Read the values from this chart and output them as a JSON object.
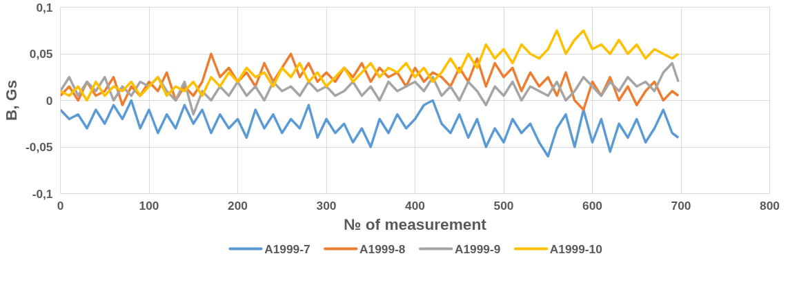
{
  "chart_data": {
    "type": "line",
    "xlabel": "№ of measurement",
    "ylabel": "B, Gs",
    "xlim": [
      0,
      800
    ],
    "xticks": [
      0,
      100,
      200,
      300,
      400,
      500,
      600,
      700,
      800
    ],
    "ylim": [
      -0.1,
      0.1
    ],
    "yticks": [
      {
        "value": -0.1,
        "label": "-0,1"
      },
      {
        "value": -0.05,
        "label": "-0,05"
      },
      0,
      {
        "value": 0.05,
        "label": "0,05"
      },
      {
        "value": 0.1,
        "label": "0,1"
      }
    ],
    "grid": true,
    "legend": "bottom",
    "marker": "none",
    "line_style": "solid",
    "x": [
      0,
      10,
      20,
      30,
      40,
      50,
      60,
      70,
      80,
      90,
      100,
      110,
      120,
      130,
      140,
      150,
      160,
      170,
      180,
      190,
      200,
      210,
      220,
      230,
      240,
      250,
      260,
      270,
      280,
      290,
      300,
      310,
      320,
      330,
      340,
      350,
      360,
      370,
      380,
      390,
      400,
      410,
      420,
      430,
      440,
      450,
      460,
      470,
      480,
      490,
      500,
      510,
      520,
      530,
      540,
      550,
      560,
      570,
      580,
      590,
      600,
      610,
      620,
      630,
      640,
      650,
      660,
      670,
      680,
      690,
      697
    ],
    "series": [
      {
        "name": "A1999-7",
        "color": "#5b9bd5",
        "values": [
          -0.01,
          -0.02,
          -0.015,
          -0.03,
          -0.01,
          -0.025,
          -0.005,
          -0.02,
          0.0,
          -0.03,
          -0.01,
          -0.035,
          -0.015,
          -0.03,
          -0.005,
          -0.025,
          -0.01,
          -0.035,
          -0.015,
          -0.03,
          -0.02,
          -0.04,
          -0.01,
          -0.03,
          -0.015,
          -0.035,
          -0.02,
          -0.03,
          -0.005,
          -0.04,
          -0.02,
          -0.035,
          -0.025,
          -0.045,
          -0.03,
          -0.05,
          -0.02,
          -0.035,
          -0.015,
          -0.03,
          -0.02,
          -0.005,
          0.0,
          -0.025,
          -0.035,
          -0.015,
          -0.04,
          -0.02,
          -0.05,
          -0.03,
          -0.045,
          -0.02,
          -0.035,
          -0.025,
          -0.045,
          -0.06,
          -0.03,
          -0.015,
          -0.05,
          -0.01,
          -0.045,
          -0.02,
          -0.055,
          -0.025,
          -0.04,
          -0.02,
          -0.045,
          -0.03,
          -0.01,
          -0.035,
          -0.04
        ]
      },
      {
        "name": "A1999-8",
        "color": "#ed7d31",
        "values": [
          0.005,
          0.015,
          0.0,
          0.02,
          0.005,
          0.01,
          0.025,
          -0.005,
          0.015,
          0.005,
          0.02,
          0.01,
          0.03,
          0.0,
          0.015,
          0.005,
          0.02,
          0.05,
          0.025,
          0.035,
          0.02,
          0.03,
          0.015,
          0.04,
          0.02,
          0.035,
          0.05,
          0.025,
          0.04,
          0.02,
          0.03,
          0.02,
          0.035,
          0.025,
          0.04,
          0.02,
          0.035,
          0.025,
          0.03,
          0.015,
          0.035,
          0.02,
          0.03,
          0.025,
          0.015,
          0.035,
          0.02,
          0.045,
          0.015,
          0.04,
          0.025,
          0.035,
          0.01,
          0.03,
          0.015,
          0.025,
          0.005,
          0.03,
          0.0,
          -0.01,
          0.02,
          0.005,
          0.025,
          0.0,
          0.015,
          -0.005,
          0.01,
          0.02,
          0.0,
          0.01,
          0.005
        ]
      },
      {
        "name": "A1999-9",
        "color": "#a5a5a5",
        "values": [
          0.01,
          0.025,
          0.005,
          0.02,
          0.01,
          0.025,
          0.0,
          0.015,
          0.005,
          0.02,
          0.015,
          0.025,
          0.01,
          0.0,
          0.02,
          -0.015,
          0.01,
          0.0,
          0.015,
          0.005,
          0.02,
          0.005,
          0.015,
          0.0,
          0.02,
          0.01,
          0.015,
          0.005,
          0.02,
          0.01,
          0.015,
          0.005,
          0.01,
          0.02,
          0.005,
          0.015,
          0.0,
          0.02,
          0.01,
          0.015,
          0.02,
          0.01,
          0.025,
          0.005,
          0.015,
          0.0,
          0.02,
          0.01,
          -0.005,
          0.015,
          0.005,
          0.02,
          0.0,
          0.015,
          0.01,
          0.005,
          0.02,
          0.0,
          0.01,
          0.025,
          0.015,
          0.005,
          0.02,
          0.01,
          0.025,
          0.015,
          0.02,
          0.01,
          0.03,
          0.04,
          0.02
        ]
      },
      {
        "name": "A1999-10",
        "color": "#ffc000",
        "values": [
          0.01,
          0.005,
          0.015,
          0.0,
          0.02,
          0.005,
          0.015,
          0.01,
          0.02,
          0.005,
          0.015,
          0.025,
          0.005,
          0.015,
          0.01,
          0.02,
          0.005,
          0.025,
          0.015,
          0.03,
          0.02,
          0.035,
          0.025,
          0.03,
          0.015,
          0.035,
          0.025,
          0.04,
          0.02,
          0.03,
          0.015,
          0.025,
          0.035,
          0.02,
          0.03,
          0.04,
          0.025,
          0.035,
          0.03,
          0.04,
          0.025,
          0.035,
          0.02,
          0.03,
          0.045,
          0.03,
          0.05,
          0.035,
          0.06,
          0.045,
          0.055,
          0.04,
          0.06,
          0.05,
          0.045,
          0.055,
          0.075,
          0.05,
          0.065,
          0.075,
          0.055,
          0.06,
          0.05,
          0.065,
          0.05,
          0.06,
          0.045,
          0.055,
          0.05,
          0.045,
          0.05
        ]
      }
    ]
  }
}
